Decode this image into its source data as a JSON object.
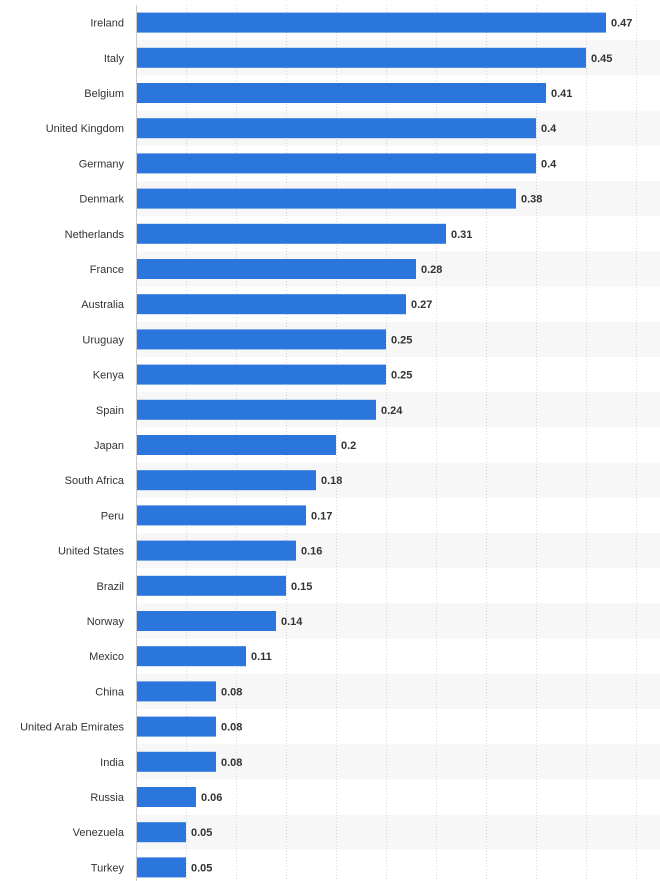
{
  "chart_data": {
    "type": "bar",
    "orientation": "horizontal",
    "categories": [
      "Ireland",
      "Italy",
      "Belgium",
      "United Kingdom",
      "Germany",
      "Denmark",
      "Netherlands",
      "France",
      "Australia",
      "Uruguay",
      "Kenya",
      "Spain",
      "Japan",
      "South Africa",
      "Peru",
      "United States",
      "Brazil",
      "Norway",
      "Mexico",
      "China",
      "United Arab Emirates",
      "India",
      "Russia",
      "Venezuela",
      "Turkey"
    ],
    "values": [
      0.47,
      0.45,
      0.41,
      0.4,
      0.4,
      0.38,
      0.31,
      0.28,
      0.27,
      0.25,
      0.25,
      0.24,
      0.2,
      0.18,
      0.17,
      0.16,
      0.15,
      0.14,
      0.11,
      0.08,
      0.08,
      0.08,
      0.06,
      0.05,
      0.05
    ],
    "value_labels": [
      "0.47",
      "0.45",
      "0.41",
      "0.4",
      "0.4",
      "0.38",
      "0.31",
      "0.28",
      "0.27",
      "0.25",
      "0.25",
      "0.24",
      "0.2",
      "0.18",
      "0.17",
      "0.16",
      "0.15",
      "0.14",
      "0.11",
      "0.08",
      "0.08",
      "0.08",
      "0.06",
      "0.05",
      "0.05"
    ],
    "xlim": [
      0,
      0.5
    ],
    "grid": true,
    "bar_color": "#2a76dd",
    "stripe_color": "#f7f7f7",
    "title": "",
    "xlabel": "",
    "ylabel": ""
  }
}
